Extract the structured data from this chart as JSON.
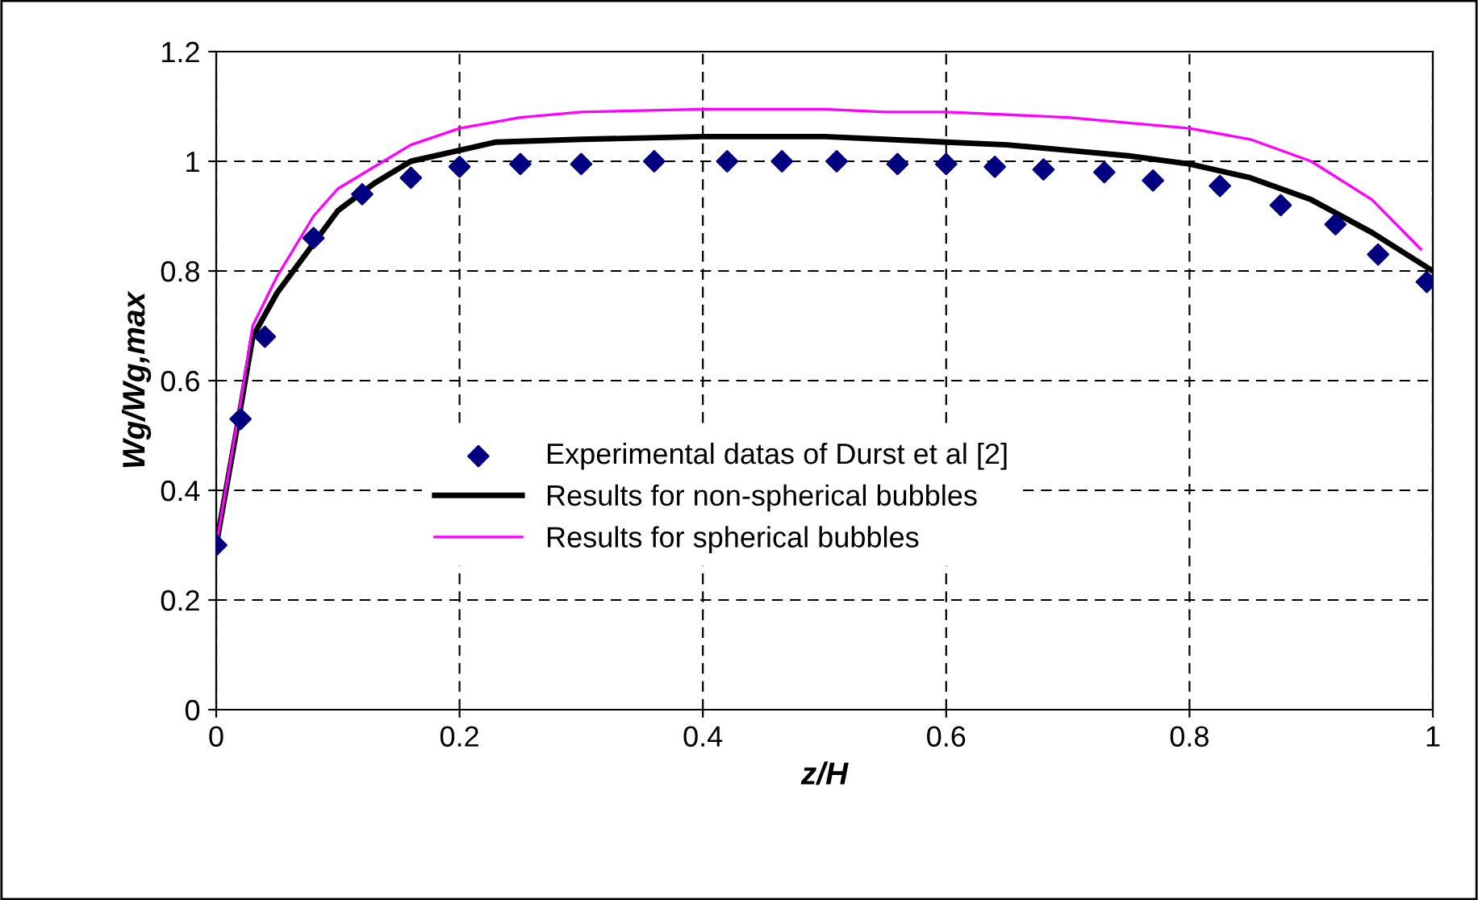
{
  "chart_data": {
    "type": "line",
    "xlabel": "z/H",
    "ylabel": "Wg/Wg,max",
    "xlim": [
      0,
      1
    ],
    "ylim": [
      0,
      1.2
    ],
    "xticks": [
      0,
      0.2,
      0.4,
      0.6,
      0.8,
      1
    ],
    "yticks": [
      0,
      0.2,
      0.4,
      0.6,
      0.8,
      1,
      1.2
    ],
    "grid": true,
    "legend": "center",
    "series": [
      {
        "name": "Experimental datas of Durst et al [2]",
        "type": "scatter",
        "marker": "diamond",
        "color": "#000080",
        "x": [
          0,
          0.02,
          0.04,
          0.08,
          0.12,
          0.16,
          0.2,
          0.25,
          0.3,
          0.36,
          0.42,
          0.465,
          0.51,
          0.56,
          0.6,
          0.64,
          0.68,
          0.73,
          0.77,
          0.825,
          0.875,
          0.92,
          0.955,
          0.995
        ],
        "values": [
          0.3,
          0.53,
          0.68,
          0.86,
          0.94,
          0.97,
          0.99,
          0.995,
          0.995,
          1.0,
          1.0,
          1.0,
          1.0,
          0.995,
          0.995,
          0.99,
          0.985,
          0.98,
          0.965,
          0.955,
          0.92,
          0.885,
          0.83,
          0.78
        ]
      },
      {
        "name": "Results for non-spherical bubbles",
        "color": "#000000",
        "x": [
          0,
          0.02,
          0.03,
          0.05,
          0.08,
          0.1,
          0.13,
          0.16,
          0.2,
          0.23,
          0.3,
          0.4,
          0.5,
          0.55,
          0.6,
          0.65,
          0.7,
          0.75,
          0.8,
          0.85,
          0.9,
          0.95,
          1.0
        ],
        "values": [
          0.3,
          0.55,
          0.68,
          0.76,
          0.85,
          0.91,
          0.96,
          1.0,
          1.02,
          1.035,
          1.04,
          1.045,
          1.045,
          1.04,
          1.035,
          1.03,
          1.02,
          1.01,
          0.995,
          0.97,
          0.93,
          0.87,
          0.8
        ]
      },
      {
        "name": "Results for spherical bubbles",
        "color": "#ff00ff",
        "x": [
          0,
          0.02,
          0.03,
          0.05,
          0.08,
          0.1,
          0.13,
          0.16,
          0.2,
          0.25,
          0.3,
          0.4,
          0.5,
          0.55,
          0.6,
          0.7,
          0.8,
          0.85,
          0.9,
          0.95,
          0.99
        ],
        "values": [
          0.3,
          0.56,
          0.7,
          0.79,
          0.9,
          0.95,
          0.99,
          1.03,
          1.06,
          1.08,
          1.09,
          1.095,
          1.095,
          1.09,
          1.09,
          1.08,
          1.06,
          1.04,
          1.0,
          0.93,
          0.84
        ]
      }
    ]
  }
}
